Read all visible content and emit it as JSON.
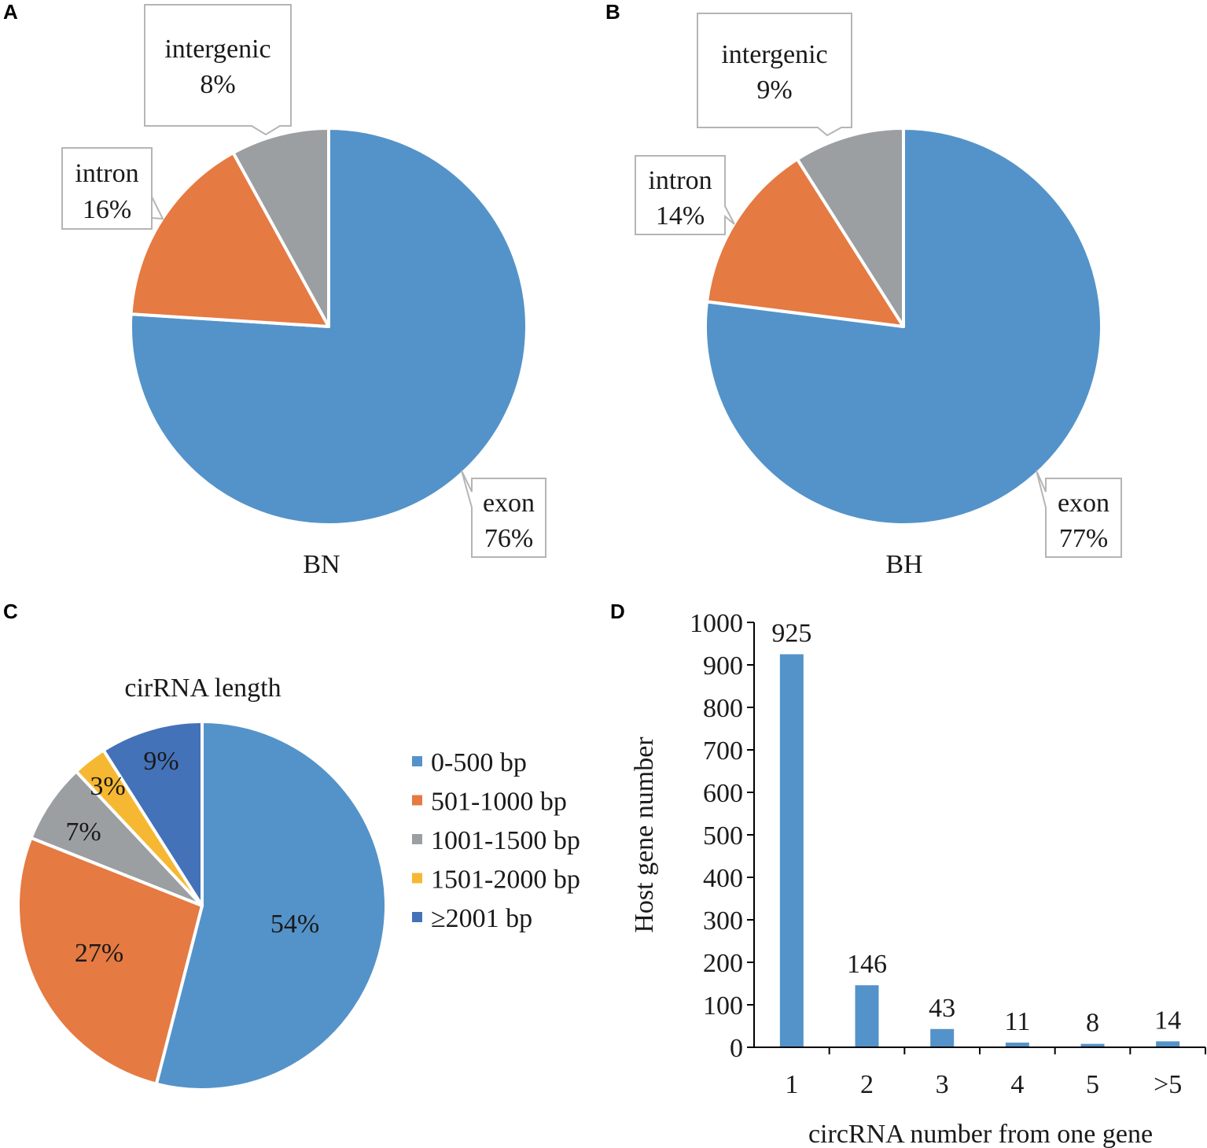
{
  "panels": {
    "a": "A",
    "b": "B",
    "c": "C",
    "d": "D"
  },
  "colors": {
    "blue": "#5493C9",
    "orange": "#E57A42",
    "gray": "#9B9FA2",
    "yellow": "#F6B832",
    "darkblue": "#4472B9",
    "callout_border": "#B5B5B5"
  },
  "chart_data": [
    {
      "id": "A",
      "type": "pie",
      "title": "BN",
      "slices": [
        {
          "label": "exon",
          "value": 76,
          "value_label": "76%"
        },
        {
          "label": "intron",
          "value": 16,
          "value_label": "16%"
        },
        {
          "label": "intergenic",
          "value": 8,
          "value_label": "8%"
        }
      ]
    },
    {
      "id": "B",
      "type": "pie",
      "title": "BH",
      "slices": [
        {
          "label": "exon",
          "value": 77,
          "value_label": "77%"
        },
        {
          "label": "intron",
          "value": 14,
          "value_label": "14%"
        },
        {
          "label": "intergenic",
          "value": 9,
          "value_label": "9%"
        }
      ]
    },
    {
      "id": "C",
      "type": "pie",
      "title": "cirRNA length",
      "legend_position": "right",
      "slices": [
        {
          "label": "0-500 bp",
          "value": 54,
          "value_label": "54%"
        },
        {
          "label": "501-1000 bp",
          "value": 27,
          "value_label": "27%"
        },
        {
          "label": "1001-1500 bp",
          "value": 7,
          "value_label": "7%"
        },
        {
          "label": "1501-2000 bp",
          "value": 3,
          "value_label": "3%"
        },
        {
          "label": "≥2001 bp",
          "value": 9,
          "value_label": "9%"
        }
      ]
    },
    {
      "id": "D",
      "type": "bar",
      "categories": [
        "1",
        "2",
        "3",
        "4",
        "5",
        ">5"
      ],
      "values": [
        925,
        146,
        43,
        11,
        8,
        14
      ],
      "value_labels": [
        "925",
        "146",
        "43",
        "11",
        "8",
        "14"
      ],
      "xlabel": "circRNA number from one gene",
      "ylabel": "Host gene  number",
      "ylim": [
        0,
        1000
      ],
      "yticks": [
        "0",
        "100",
        "200",
        "300",
        "400",
        "500",
        "600",
        "700",
        "800",
        "900",
        "1000"
      ],
      "grid": false
    }
  ]
}
